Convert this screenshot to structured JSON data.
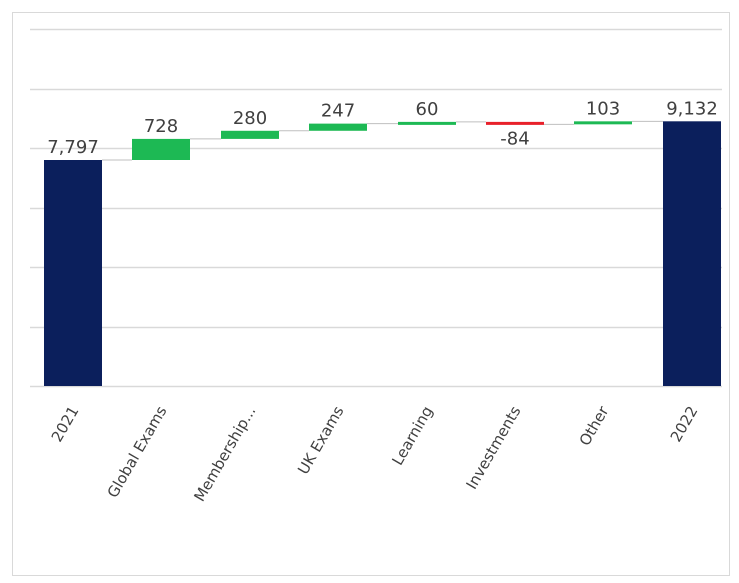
{
  "chart_data": {
    "type": "bar",
    "subtype": "waterfall",
    "title": "",
    "xlabel": "",
    "ylabel": "",
    "grid": true,
    "legend": "none",
    "colors": {
      "total": "#0b1f5c",
      "increase": "#1db954",
      "decrease": "#e8202a",
      "gridline": "#d9d9d9",
      "connector": "#bfbfbf"
    },
    "points": [
      {
        "category": "2021",
        "label": "7,797",
        "value": 7797,
        "kind": "total"
      },
      {
        "category": "Global Exams",
        "label": "728",
        "value": 728,
        "kind": "delta"
      },
      {
        "category": "Membership...",
        "label": "280",
        "value": 280,
        "kind": "delta"
      },
      {
        "category": "UK Exams",
        "label": "247",
        "value": 247,
        "kind": "delta"
      },
      {
        "category": "Learning",
        "label": "60",
        "value": 60,
        "kind": "delta"
      },
      {
        "category": "Investments",
        "label": "-84",
        "value": -84,
        "kind": "delta"
      },
      {
        "category": "Other",
        "label": "103",
        "value": 103,
        "kind": "delta"
      },
      {
        "category": "2022",
        "label": "9,132",
        "value": 9132,
        "kind": "total"
      }
    ]
  }
}
